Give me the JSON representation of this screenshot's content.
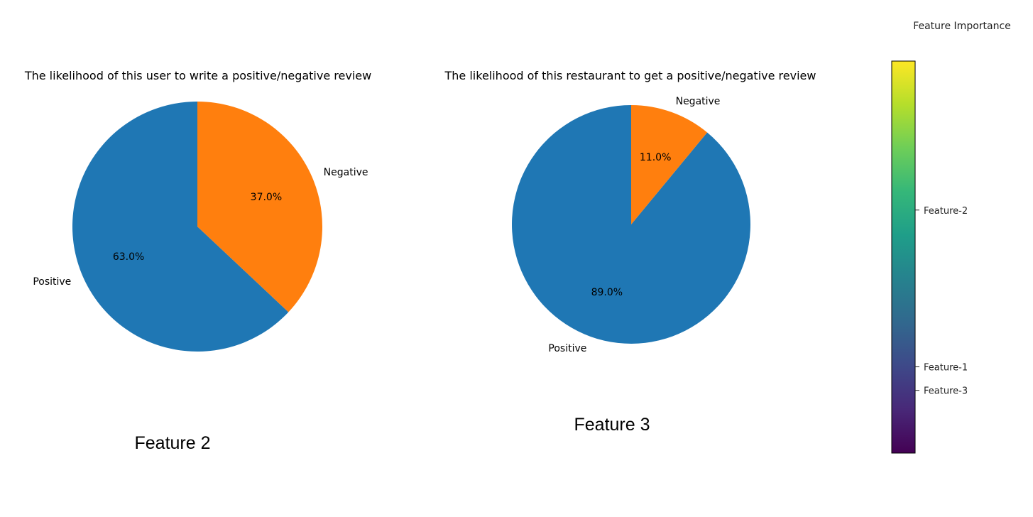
{
  "chart_data": [
    {
      "type": "pie",
      "title": "The likelihood of this user to write a positive/negative review",
      "categories": [
        "Positive",
        "Negative"
      ],
      "values": [
        63.0,
        37.0
      ],
      "value_labels": [
        "63.0%",
        "37.0%"
      ],
      "colors": [
        "#1f77b4",
        "#ff7f0e"
      ],
      "start_angle_deg": 90,
      "direction": "counterclockwise",
      "caption": "Feature 2"
    },
    {
      "type": "pie",
      "title": "The likelihood of this restaurant to get a positive/negative review",
      "categories": [
        "Positive",
        "Negative"
      ],
      "values": [
        89.0,
        11.0
      ],
      "value_labels": [
        "89.0%",
        "11.0%"
      ],
      "colors": [
        "#1f77b4",
        "#ff7f0e"
      ],
      "start_angle_deg": 90,
      "direction": "counterclockwise",
      "caption": "Feature 3"
    }
  ],
  "colorbar": {
    "title": "Feature Importance",
    "colormap": "viridis",
    "colormap_stops": [
      "#440154",
      "#482878",
      "#3e4989",
      "#31688e",
      "#26828e",
      "#1f9e89",
      "#35b779",
      "#6ece58",
      "#b5de2b",
      "#fde725"
    ],
    "ticks": [
      {
        "label": "Feature-2",
        "level": 0.62
      },
      {
        "label": "Feature-1",
        "level": 0.22
      },
      {
        "label": "Feature-3",
        "level": 0.16
      }
    ]
  }
}
